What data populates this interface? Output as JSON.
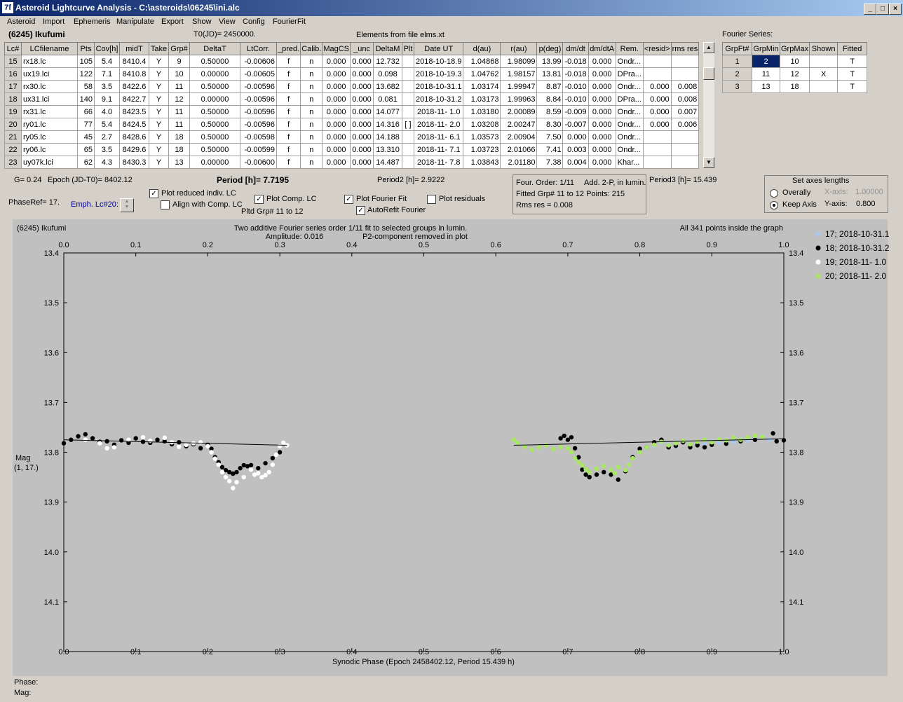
{
  "window": {
    "title": "Asteroid Lightcurve Analysis - C:\\asteroids\\06245\\ini.alc",
    "icon_label": "7f"
  },
  "menu": [
    "Asteroid",
    "Import",
    "Ephemeris",
    "Manipulate",
    "Export",
    "Show",
    "View",
    "Config",
    "FourierFit"
  ],
  "header": {
    "asteroid": "(6245) Ikufumi",
    "t0": "T0(JD)= 2450000.",
    "elements": "Elements from file elms.xt",
    "fourier_series": "Fourier Series:"
  },
  "lc_table": {
    "columns": [
      "Lc#",
      "LCfilename",
      "Pts",
      "Cov[h]",
      "midT",
      "Take",
      "Grp#",
      "DeltaT",
      "LtCorr.",
      "_pred.",
      "Calib.",
      "MagCS",
      "_unc",
      "DeltaM",
      "Plt",
      "Date UT",
      "d(au)",
      "r(au)",
      "p(deg)",
      "dm/dt",
      "dm/dtA",
      "Rem.",
      "<resid>",
      "rms res"
    ],
    "rows": [
      [
        "15",
        "rx18.lc",
        "105",
        "5.4",
        "8410.4",
        "Y",
        "9",
        "0.50000",
        "-0.00606",
        "f",
        "n",
        "0.000",
        "0.000",
        "12.732",
        "",
        "2018-10-18.9",
        "1.04868",
        "1.98099",
        "13.99",
        "-0.018",
        "0.000",
        "Ondr...",
        "",
        ""
      ],
      [
        "16",
        "ux19.lci",
        "122",
        "7.1",
        "8410.8",
        "Y",
        "10",
        "0.00000",
        "-0.00605",
        "f",
        "n",
        "0.000",
        "0.000",
        "0.098",
        "",
        "2018-10-19.3",
        "1.04762",
        "1.98157",
        "13.81",
        "-0.018",
        "0.000",
        "DPra...",
        "",
        ""
      ],
      [
        "17",
        "rx30.lc",
        "58",
        "3.5",
        "8422.6",
        "Y",
        "11",
        "0.50000",
        "-0.00596",
        "f",
        "n",
        "0.000",
        "0.000",
        "13.682",
        "",
        "2018-10-31.1",
        "1.03174",
        "1.99947",
        "8.87",
        "-0.010",
        "0.000",
        "Ondr...",
        "0.000",
        "0.008"
      ],
      [
        "18",
        "ux31.lci",
        "140",
        "9.1",
        "8422.7",
        "Y",
        "12",
        "0.00000",
        "-0.00596",
        "f",
        "n",
        "0.000",
        "0.000",
        "0.081",
        "",
        "2018-10-31.2",
        "1.03173",
        "1.99963",
        "8.84",
        "-0.010",
        "0.000",
        "DPra...",
        "0.000",
        "0.008"
      ],
      [
        "19",
        "rx31.lc",
        "66",
        "4.0",
        "8423.5",
        "Y",
        "11",
        "0.50000",
        "-0.00596",
        "f",
        "n",
        "0.000",
        "0.000",
        "14.077",
        "",
        "2018-11- 1.0",
        "1.03180",
        "2.00089",
        "8.59",
        "-0.009",
        "0.000",
        "Ondr...",
        "0.000",
        "0.007"
      ],
      [
        "20",
        "ry01.lc",
        "77",
        "5.4",
        "8424.5",
        "Y",
        "11",
        "0.50000",
        "-0.00596",
        "f",
        "n",
        "0.000",
        "0.000",
        "14.316",
        "[ ]",
        "2018-11- 2.0",
        "1.03208",
        "2.00247",
        "8.30",
        "-0.007",
        "0.000",
        "Ondr...",
        "0.000",
        "0.006"
      ],
      [
        "21",
        "ry05.lc",
        "45",
        "2.7",
        "8428.6",
        "Y",
        "18",
        "0.50000",
        "-0.00598",
        "f",
        "n",
        "0.000",
        "0.000",
        "14.188",
        "",
        "2018-11- 6.1",
        "1.03573",
        "2.00904",
        "7.50",
        "0.000",
        "0.000",
        "Ondr...",
        "",
        ""
      ],
      [
        "22",
        "ry06.lc",
        "65",
        "3.5",
        "8429.6",
        "Y",
        "18",
        "0.50000",
        "-0.00599",
        "f",
        "n",
        "0.000",
        "0.000",
        "13.310",
        "",
        "2018-11- 7.1",
        "1.03723",
        "2.01066",
        "7.41",
        "0.003",
        "0.000",
        "Ondr...",
        "",
        ""
      ],
      [
        "23",
        "uy07k.lci",
        "62",
        "4.3",
        "8430.3",
        "Y",
        "13",
        "0.00000",
        "-0.00600",
        "f",
        "n",
        "0.000",
        "0.000",
        "14.487",
        "",
        "2018-11- 7.8",
        "1.03843",
        "2.01180",
        "7.38",
        "0.004",
        "0.000",
        "Khar...",
        "",
        ""
      ]
    ]
  },
  "fourier_table": {
    "columns": [
      "GrpFt#",
      "GrpMin",
      "GrpMax",
      "Shown",
      "Fitted"
    ],
    "rows": [
      [
        "1",
        "2",
        "10",
        "",
        "T"
      ],
      [
        "2",
        "11",
        "12",
        "X",
        "T"
      ],
      [
        "3",
        "13",
        "18",
        "",
        "T"
      ]
    ]
  },
  "controls": {
    "g": "G= 0.24",
    "epoch": "Epoch (JD-T0)= 8402.12",
    "period": "Period [h]= 7.7195",
    "period2": "Period2 [h]= 2.9222",
    "period3": "Period3 [h]= 15.439",
    "phaseref": "PhaseRef= 17.",
    "emph": "Emph. Lc#20:",
    "plot_reduced": "Plot reduced indiv. LC",
    "align_comp": "Align with Comp. LC",
    "plot_comp": "Plot Comp. LC",
    "pltd_grp": "Pltd Grp#  11 to   12",
    "plot_fourier": "Plot Fourier Fit",
    "autorefit": "AutoRefit Fourier",
    "plot_resid": "Plot residuals",
    "four_order": "Four. Order:  1/11",
    "add2p": "Add. 2-P, in lumin.",
    "fitted_grp": "Fitted Grp# 11 to 12 Points: 215",
    "rms_res": "Rms res      = 0.008",
    "axes_title": "Set axes lengths",
    "overally": "Overally",
    "keep_axis": "Keep Axis",
    "xaxis_label": "X-axis:",
    "xaxis_val": "1.00000",
    "yaxis_label": "Y-axis:",
    "yaxis_val": "0.800",
    "check_mark": "✓"
  },
  "status": {
    "phase": "Phase:",
    "mag": "Mag:"
  },
  "chart_data": {
    "type": "scatter",
    "header_left": "(6245) Ikufumi",
    "title": "Two additive Fourier series order 1/11 fit to selected groups in lumin.",
    "subtitle_left": "Amplitude: 0.016",
    "subtitle_right": "P2-component removed in plot",
    "header_right": "All 341 points inside the graph",
    "xlabel": "Synodic Phase (Epoch 2458402.12, Period 15.439 h)",
    "ylabel": "Mag",
    "ylabel2": "(1, 17.)",
    "xlim": [
      0,
      1
    ],
    "ylim": [
      13.4,
      14.2
    ],
    "y_inverted": true,
    "xticks": [
      "0.0",
      "0.1",
      "0.2",
      "0.3",
      "0.4",
      "0.5",
      "0.6",
      "0.7",
      "0.8",
      "0.9",
      "1.0"
    ],
    "yticks": [
      "13.4",
      "13.5",
      "13.6",
      "13.7",
      "13.8",
      "13.9",
      "14.0",
      "14.1"
    ],
    "legend_position": "right",
    "fit_line": [
      [
        0.0,
        13.775
      ],
      [
        0.31,
        13.786
      ],
      [
        0.625,
        13.786
      ],
      [
        1.0,
        13.773
      ]
    ],
    "series": [
      {
        "name": "17; 2018-10-31.1",
        "color": "#a8c8f0",
        "points": [
          [
            0.82,
            13.787
          ],
          [
            0.83,
            13.781
          ],
          [
            0.84,
            13.784
          ],
          [
            0.85,
            13.788
          ],
          [
            0.86,
            13.779
          ],
          [
            0.87,
            13.783
          ],
          [
            0.88,
            13.78
          ],
          [
            0.89,
            13.784
          ],
          [
            0.9,
            13.778
          ],
          [
            0.91,
            13.781
          ],
          [
            0.92,
            13.777
          ],
          [
            0.93,
            13.779
          ],
          [
            0.94,
            13.774
          ],
          [
            0.95,
            13.776
          ],
          [
            0.96,
            13.772
          ],
          [
            0.97,
            13.768
          ],
          [
            0.98,
            13.775
          ]
        ]
      },
      {
        "name": "18; 2018-10-31.2",
        "color": "#000000",
        "points": [
          [
            0.0,
            13.782
          ],
          [
            0.01,
            13.775
          ],
          [
            0.02,
            13.768
          ],
          [
            0.03,
            13.764
          ],
          [
            0.04,
            13.772
          ],
          [
            0.05,
            13.779
          ],
          [
            0.06,
            13.778
          ],
          [
            0.07,
            13.785
          ],
          [
            0.08,
            13.776
          ],
          [
            0.09,
            13.781
          ],
          [
            0.1,
            13.772
          ],
          [
            0.11,
            13.779
          ],
          [
            0.12,
            13.781
          ],
          [
            0.13,
            13.775
          ],
          [
            0.14,
            13.778
          ],
          [
            0.15,
            13.784
          ],
          [
            0.16,
            13.78
          ],
          [
            0.17,
            13.788
          ],
          [
            0.18,
            13.784
          ],
          [
            0.19,
            13.792
          ],
          [
            0.2,
            13.785
          ],
          [
            0.205,
            13.793
          ],
          [
            0.21,
            13.81
          ],
          [
            0.215,
            13.82
          ],
          [
            0.22,
            13.83
          ],
          [
            0.225,
            13.836
          ],
          [
            0.23,
            13.84
          ],
          [
            0.235,
            13.843
          ],
          [
            0.24,
            13.84
          ],
          [
            0.245,
            13.832
          ],
          [
            0.25,
            13.826
          ],
          [
            0.255,
            13.828
          ],
          [
            0.26,
            13.826
          ],
          [
            0.27,
            13.832
          ],
          [
            0.28,
            13.822
          ],
          [
            0.29,
            13.812
          ],
          [
            0.3,
            13.8
          ],
          [
            0.69,
            13.772
          ],
          [
            0.695,
            13.767
          ],
          [
            0.7,
            13.775
          ],
          [
            0.705,
            13.77
          ],
          [
            0.71,
            13.792
          ],
          [
            0.715,
            13.81
          ],
          [
            0.72,
            13.835
          ],
          [
            0.725,
            13.845
          ],
          [
            0.73,
            13.85
          ],
          [
            0.74,
            13.845
          ],
          [
            0.75,
            13.84
          ],
          [
            0.76,
            13.845
          ],
          [
            0.77,
            13.855
          ],
          [
            0.78,
            13.838
          ],
          [
            0.79,
            13.81
          ],
          [
            0.8,
            13.793
          ],
          [
            0.81,
            13.79
          ],
          [
            0.82,
            13.78
          ],
          [
            0.83,
            13.775
          ],
          [
            0.84,
            13.79
          ],
          [
            0.85,
            13.787
          ],
          [
            0.86,
            13.78
          ],
          [
            0.87,
            13.79
          ],
          [
            0.88,
            13.786
          ],
          [
            0.89,
            13.79
          ],
          [
            0.9,
            13.785
          ],
          [
            0.92,
            13.783
          ],
          [
            0.94,
            13.778
          ],
          [
            0.96,
            13.775
          ],
          [
            0.985,
            13.762
          ],
          [
            0.99,
            13.778
          ],
          [
            1.0,
            13.776
          ]
        ]
      },
      {
        "name": "19; 2018-11- 1.0",
        "color": "#ffffff",
        "points": [
          [
            0.03,
            13.775
          ],
          [
            0.05,
            13.782
          ],
          [
            0.06,
            13.792
          ],
          [
            0.07,
            13.79
          ],
          [
            0.09,
            13.775
          ],
          [
            0.11,
            13.77
          ],
          [
            0.12,
            13.777
          ],
          [
            0.14,
            13.771
          ],
          [
            0.15,
            13.78
          ],
          [
            0.16,
            13.789
          ],
          [
            0.17,
            13.785
          ],
          [
            0.18,
            13.782
          ],
          [
            0.19,
            13.78
          ],
          [
            0.2,
            13.788
          ],
          [
            0.205,
            13.8
          ],
          [
            0.21,
            13.813
          ],
          [
            0.215,
            13.825
          ],
          [
            0.22,
            13.84
          ],
          [
            0.225,
            13.85
          ],
          [
            0.23,
            13.858
          ],
          [
            0.235,
            13.872
          ],
          [
            0.24,
            13.86
          ],
          [
            0.25,
            13.85
          ],
          [
            0.26,
            13.835
          ],
          [
            0.265,
            13.845
          ],
          [
            0.27,
            13.842
          ],
          [
            0.275,
            13.85
          ],
          [
            0.28,
            13.846
          ],
          [
            0.285,
            13.84
          ],
          [
            0.29,
            13.825
          ],
          [
            0.295,
            13.805
          ],
          [
            0.3,
            13.788
          ],
          [
            0.305,
            13.781
          ],
          [
            0.31,
            13.786
          ]
        ]
      },
      {
        "name": "20; 2018-11- 2.0",
        "color": "#a8e860",
        "points": [
          [
            0.625,
            13.775
          ],
          [
            0.63,
            13.781
          ],
          [
            0.64,
            13.789
          ],
          [
            0.65,
            13.795
          ],
          [
            0.66,
            13.79
          ],
          [
            0.67,
            13.786
          ],
          [
            0.68,
            13.794
          ],
          [
            0.69,
            13.79
          ],
          [
            0.7,
            13.792
          ],
          [
            0.705,
            13.8
          ],
          [
            0.71,
            13.812
          ],
          [
            0.715,
            13.82
          ],
          [
            0.72,
            13.826
          ],
          [
            0.725,
            13.834
          ],
          [
            0.73,
            13.84
          ],
          [
            0.74,
            13.833
          ],
          [
            0.75,
            13.828
          ],
          [
            0.76,
            13.835
          ],
          [
            0.765,
            13.842
          ],
          [
            0.77,
            13.83
          ],
          [
            0.78,
            13.836
          ],
          [
            0.785,
            13.825
          ],
          [
            0.79,
            13.812
          ],
          [
            0.8,
            13.8
          ],
          [
            0.81,
            13.79
          ],
          [
            0.82,
            13.785
          ],
          [
            0.83,
            13.779
          ],
          [
            0.84,
            13.786
          ],
          [
            0.85,
            13.782
          ],
          [
            0.86,
            13.777
          ],
          [
            0.87,
            13.784
          ],
          [
            0.88,
            13.779
          ],
          [
            0.89,
            13.775
          ],
          [
            0.9,
            13.78
          ],
          [
            0.91,
            13.774
          ],
          [
            0.92,
            13.776
          ],
          [
            0.93,
            13.771
          ],
          [
            0.94,
            13.775
          ],
          [
            0.95,
            13.77
          ],
          [
            0.96,
            13.767
          ],
          [
            0.97,
            13.769
          ]
        ]
      }
    ]
  }
}
